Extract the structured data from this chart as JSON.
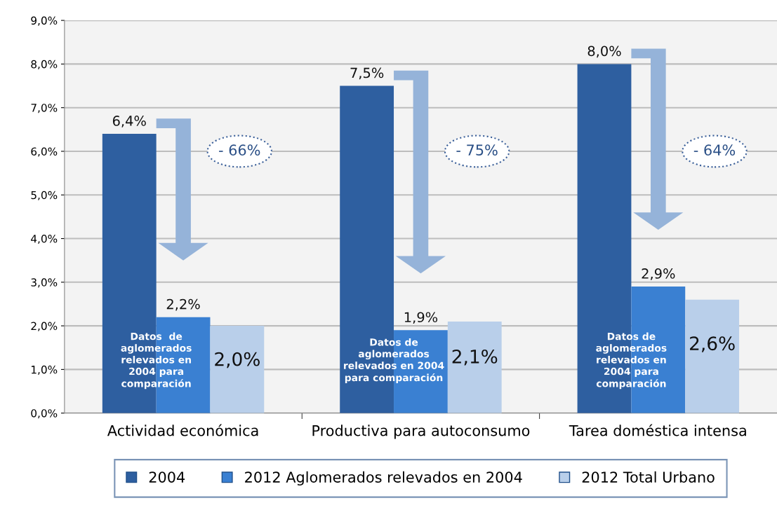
{
  "chart_data": {
    "type": "bar",
    "categories": [
      "Actividad económica",
      "Productiva para autoconsumo",
      "Tarea doméstica intensa"
    ],
    "series": [
      {
        "name": "2004",
        "color": "#2e5fa0",
        "values": [
          6.4,
          7.5,
          8.0
        ],
        "value_labels": [
          "6,4%",
          "7,5%",
          "8,0%"
        ]
      },
      {
        "name": "2012 Aglomerados relevados en 2004",
        "color": "#3a80d2",
        "values": [
          2.2,
          1.9,
          2.9
        ],
        "value_labels": [
          "2,2%",
          "1,9%",
          "2,9%"
        ]
      },
      {
        "name": "2012 Total Urbano",
        "color": "#b9cfea",
        "values": [
          2.0,
          2.1,
          2.6
        ],
        "value_labels": [
          "2,0%",
          "2,1%",
          "2,6%"
        ]
      }
    ],
    "ylim": [
      0,
      9
    ],
    "yticks": [
      {
        "value": 0,
        "label": "0,0%"
      },
      {
        "value": 1,
        "label": "1,0%"
      },
      {
        "value": 2,
        "label": "2,0%"
      },
      {
        "value": 3,
        "label": "3,0%"
      },
      {
        "value": 4,
        "label": "4,0%"
      },
      {
        "value": 5,
        "label": "5,0%"
      },
      {
        "value": 6,
        "label": "6,0%"
      },
      {
        "value": 7,
        "label": "7,0%"
      },
      {
        "value": 8,
        "label": "8,0%"
      },
      {
        "value": 9,
        "label": "9,0%"
      }
    ],
    "annotations": [
      "- 66%",
      "- 75%",
      "- 64%",
      "Datos  de\naglomerados\nrelevados en\n2004 para\ncomparación",
      "Datos de\naglomerados\nrelevados en 2004\npara comparación",
      "Datos de\naglomerados\nrelevados en\n2004 para\ncomparación"
    ],
    "grid": "y",
    "legend": "bottom"
  }
}
